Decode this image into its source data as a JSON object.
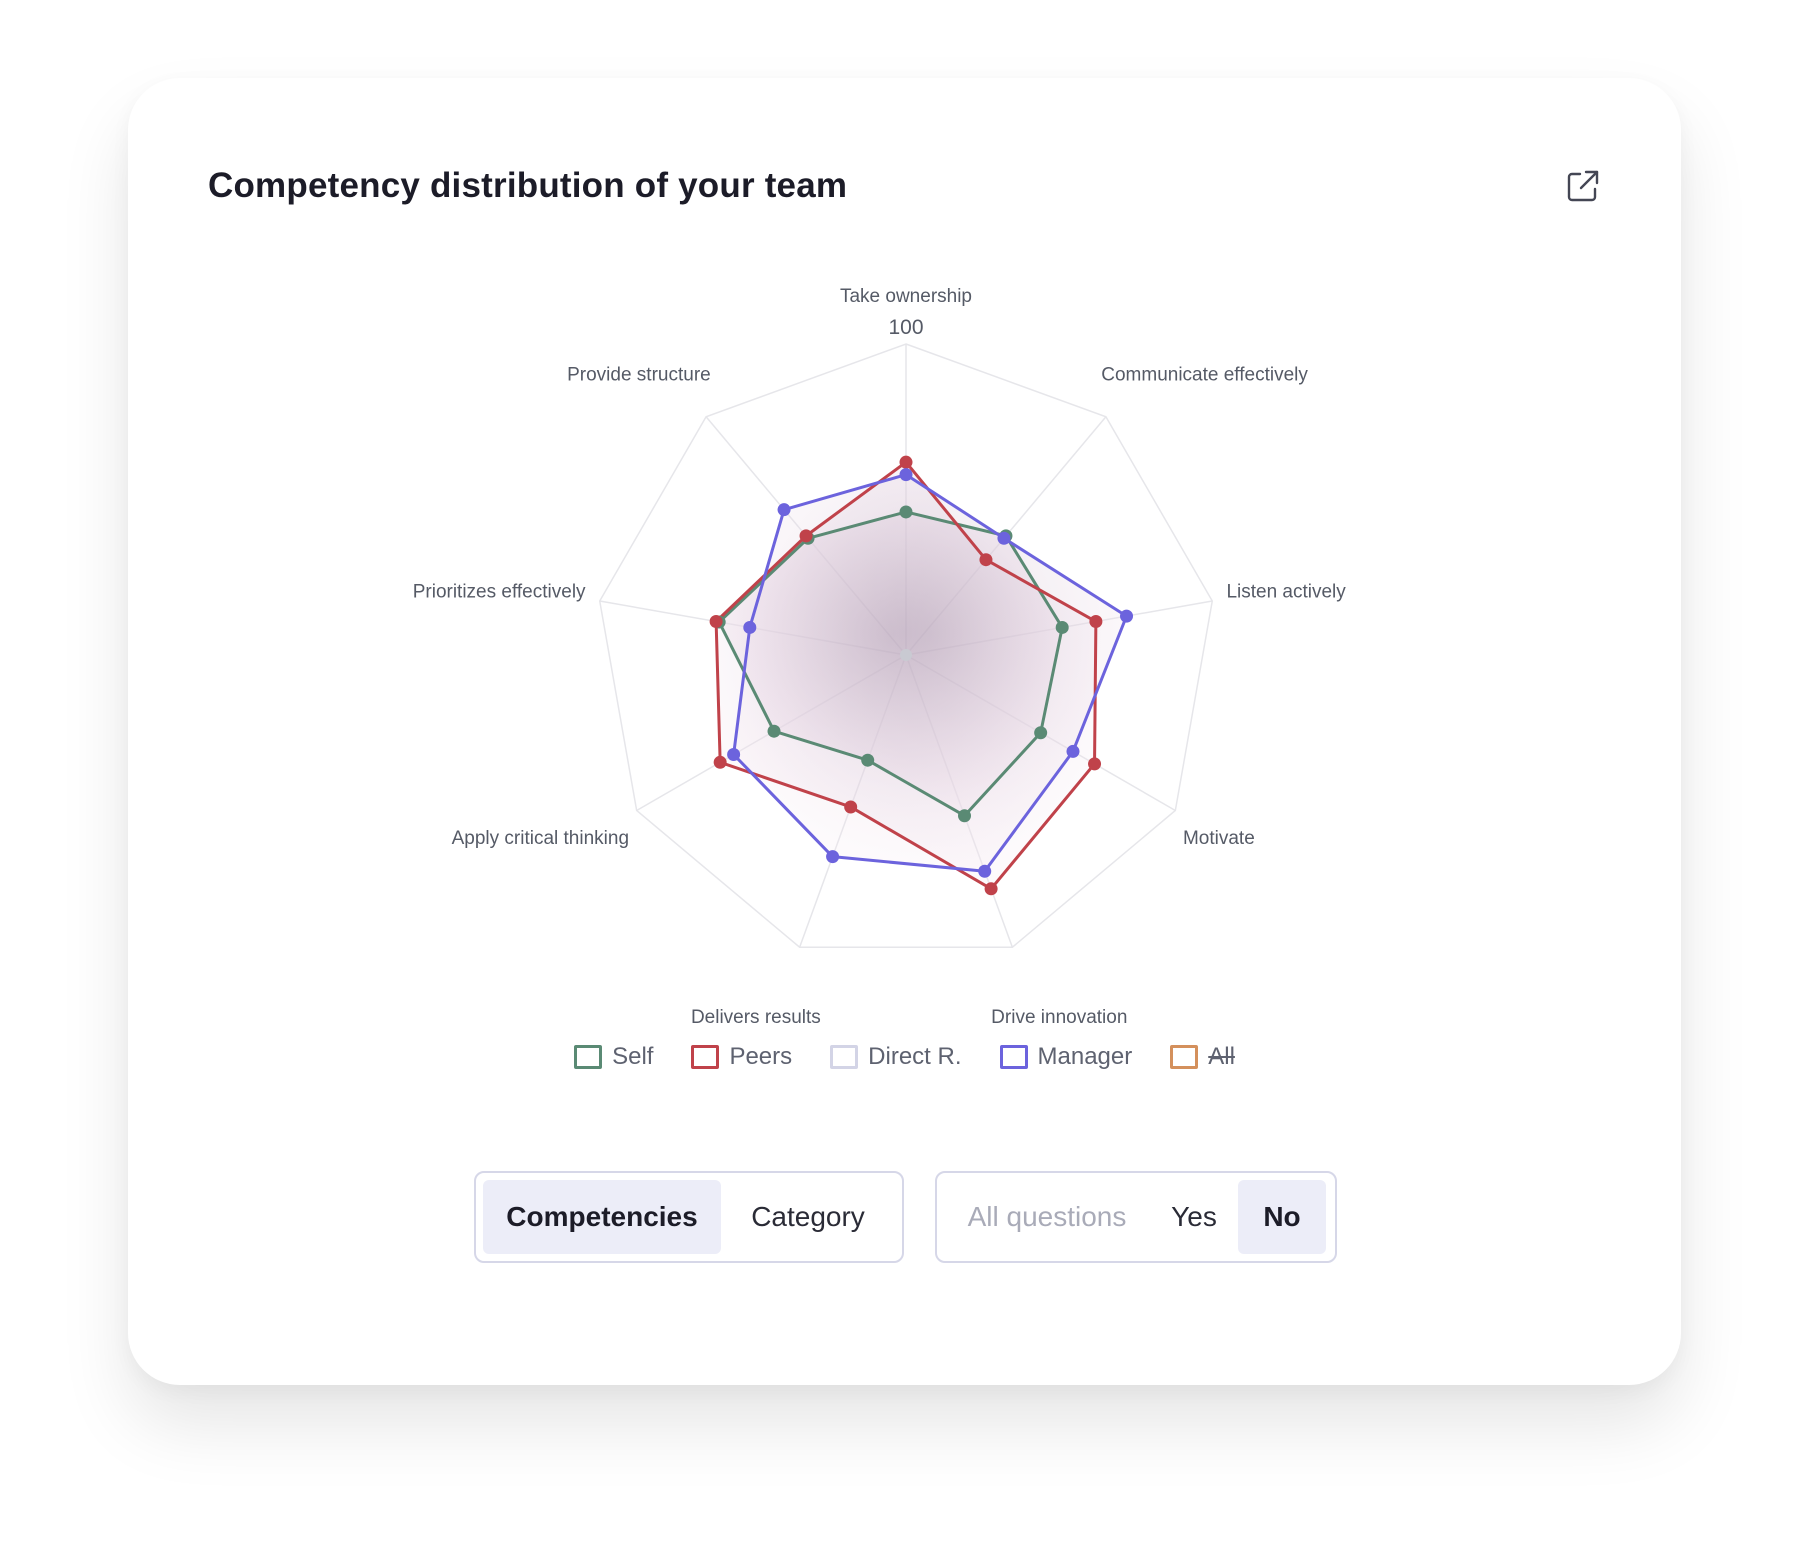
{
  "card": {
    "title": "Competency distribution of your team",
    "export_icon": "external-link-icon"
  },
  "chart_data": {
    "type": "radar",
    "axes": [
      "Take ownership",
      "Communicate effectively",
      "Listen actively",
      "Motivate",
      "Drive innovation",
      "Delivers results",
      "Apply critical thinking",
      "Prioritizes effectively",
      "Provide structure"
    ],
    "tick_max_label": "100",
    "range": [
      0,
      100
    ],
    "series": [
      {
        "name": "Self",
        "color": "#5a8a74",
        "values": [
          46,
          50,
          51,
          50,
          55,
          36,
          49,
          61,
          49
        ],
        "shown": true
      },
      {
        "name": "Peers",
        "color": "#c0424a",
        "values": [
          62,
          40,
          62,
          70,
          80,
          52,
          69,
          62,
          50
        ],
        "shown": true
      },
      {
        "name": "Direct R.",
        "color": "#d3d4e6",
        "values": [],
        "shown": true
      },
      {
        "name": "Manager",
        "color": "#6c63dd",
        "values": [
          58,
          49,
          72,
          62,
          74,
          69,
          64,
          51,
          61
        ],
        "shown": true
      },
      {
        "name": "All",
        "color": "#d4905c",
        "values": [],
        "shown": false
      }
    ],
    "legend_placement": "bottom",
    "grid": true
  },
  "toggles": {
    "view": {
      "options": [
        "Competencies",
        "Category"
      ],
      "selected": "Competencies"
    },
    "questions": {
      "options": [
        "All questions",
        "Yes",
        "No"
      ],
      "selected": "No"
    }
  }
}
